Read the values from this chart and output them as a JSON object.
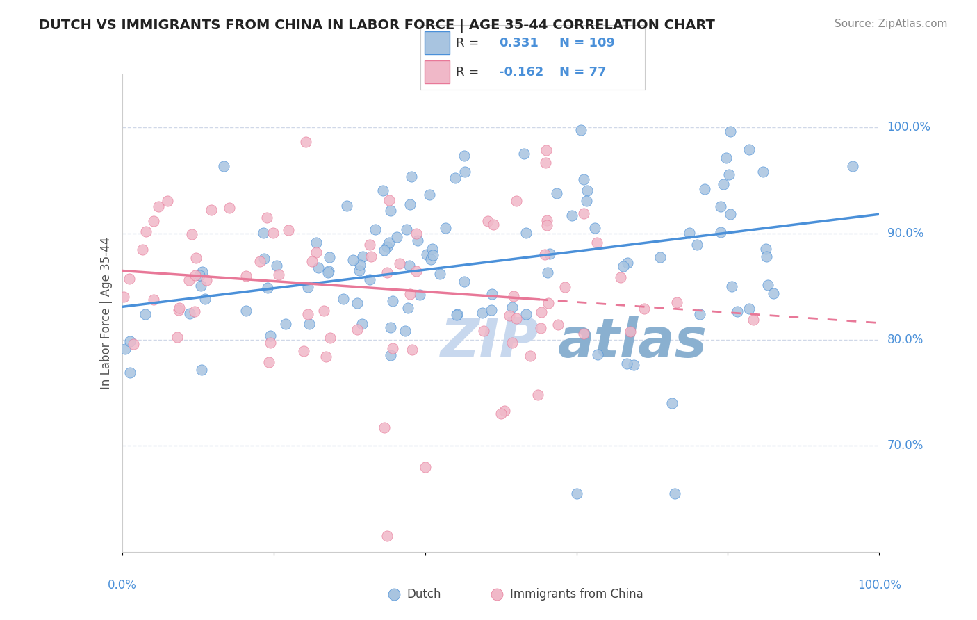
{
  "title": "DUTCH VS IMMIGRANTS FROM CHINA IN LABOR FORCE | AGE 35-44 CORRELATION CHART",
  "source": "Source: ZipAtlas.com",
  "ylabel": "In Labor Force | Age 35-44",
  "R_dutch": 0.331,
  "N_dutch": 109,
  "R_china": -0.162,
  "N_china": 77,
  "color_dutch": "#a8c4e0",
  "color_dutch_line": "#4a90d9",
  "color_china": "#f0b8c8",
  "color_china_line": "#e87898",
  "color_label": "#4a90d9",
  "grid_color": "#d0d8e8",
  "watermark_zip_color": "#c8d8ee",
  "watermark_atlas_color": "#8ab0d0",
  "background_color": "#ffffff",
  "ytick_values": [
    0.7,
    0.8,
    0.9,
    1.0
  ],
  "xlim": [
    0.0,
    1.0
  ],
  "ylim": [
    0.6,
    1.05
  ],
  "title_fontsize": 14,
  "source_fontsize": 11
}
